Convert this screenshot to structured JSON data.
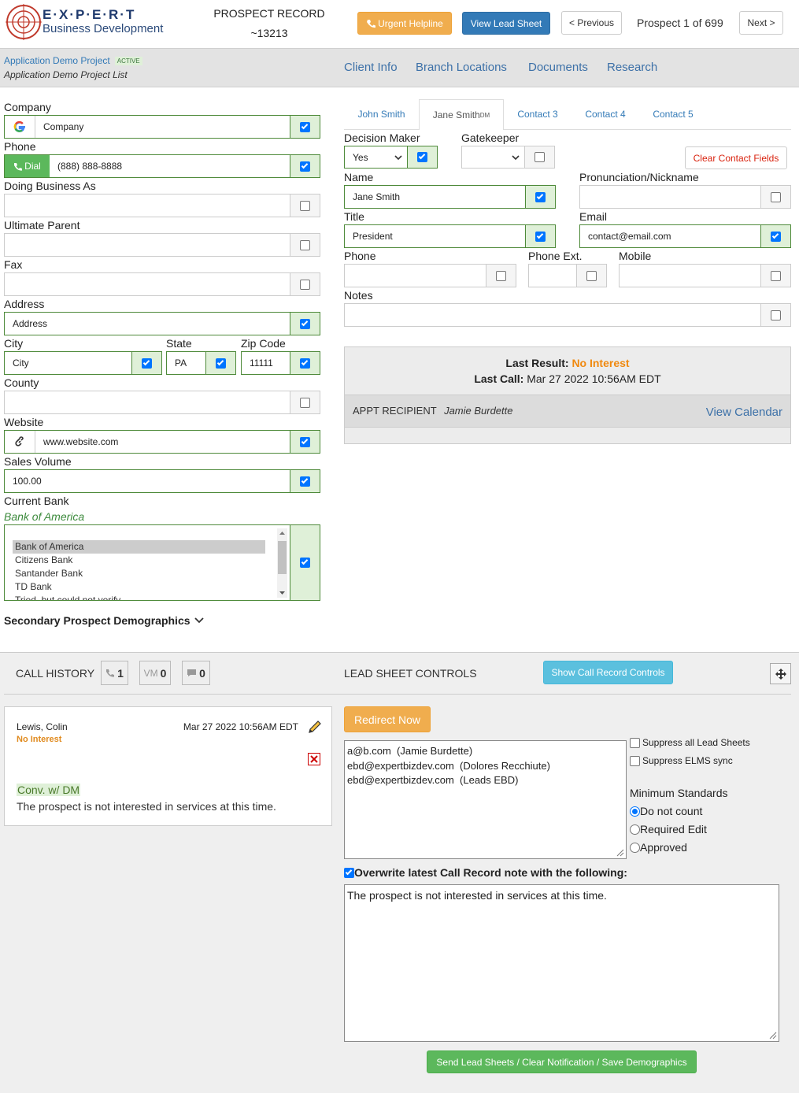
{
  "header": {
    "logo_title": "E·X·P·E·R·T",
    "logo_subtitle": "Business Development",
    "record_title": "PROSPECT RECORD",
    "record_id": "~13213",
    "urgent": "Urgent Helpline",
    "view_lead_sheet": "View Lead Sheet",
    "previous": "< Previous",
    "position": "Prospect 1 of 699",
    "next": "Next >"
  },
  "project": {
    "name": "Application Demo Project",
    "status": "ACTIVE",
    "list": "Application Demo Project List"
  },
  "nav": [
    "Client Info",
    "Branch Locations",
    "Documents",
    "Research"
  ],
  "company": {
    "fields": [
      {
        "label": "Company",
        "value": "Company",
        "checked": true
      },
      {
        "label": "Phone",
        "value": "(888) 888-8888",
        "checked": true,
        "button": "Dial"
      },
      {
        "label": "Doing Business As",
        "checked": false
      },
      {
        "label": "Ultimate Parent",
        "checked": false
      },
      {
        "label": "Fax",
        "checked": false
      },
      {
        "label": "Address",
        "value": "Address",
        "checked": true
      },
      {
        "label": "City",
        "value": "City",
        "checked": true
      },
      {
        "label": "State",
        "value": "PA",
        "checked": true
      },
      {
        "label": "Zip Code",
        "value": "11111",
        "checked": true
      },
      {
        "label": "County",
        "checked": false
      },
      {
        "label": "Website",
        "value": "www.website.com",
        "checked": true
      },
      {
        "label": "Sales Volume",
        "value": "100.00",
        "checked": true
      }
    ],
    "bank": {
      "label": "Current Bank",
      "selected": "Bank of America",
      "options": [
        "Bank of America",
        "Citizens Bank",
        "Santander Bank",
        "TD Bank",
        "Tried, but could not verify"
      ],
      "checked": true
    },
    "secondary": "Secondary Prospect Demographics"
  },
  "contact": {
    "tabs": [
      "John Smith",
      "Jane Smith",
      "Contact 3",
      "Contact 4",
      "Contact 5"
    ],
    "active": 1,
    "dm_badge": "DM",
    "decision_maker": {
      "label": "Decision Maker",
      "value": "Yes",
      "checked": true
    },
    "gatekeeper": {
      "label": "Gatekeeper",
      "checked": false
    },
    "clear": "Clear Contact Fields",
    "fields": [
      {
        "label": "Name",
        "value": "Jane Smith",
        "checked": true
      },
      {
        "label": "Pronunciation/Nickname",
        "checked": false
      },
      {
        "label": "Title",
        "value": "President",
        "checked": true
      },
      {
        "label": "Email",
        "value": "contact@email.com",
        "checked": true
      },
      {
        "label": "Phone",
        "checked": false
      },
      {
        "label": "Phone Ext.",
        "checked": false
      },
      {
        "label": "Mobile",
        "checked": false
      },
      {
        "label": "Notes",
        "checked": false
      }
    ]
  },
  "result": {
    "last_result_label": "Last Result:",
    "last_result": "No Interest",
    "last_call_label": "Last Call:",
    "last_call": "Mar 27 2022 10:56AM EDT",
    "appt_label": "APPT RECIPIENT",
    "appt_name": "Jamie Burdette",
    "view_calendar": "View Calendar"
  },
  "call_history": {
    "title": "CALL HISTORY",
    "calls": "1",
    "vm_label": "VM",
    "voicemails": "0",
    "messages": "0",
    "entries": [
      {
        "name": "Lewis, Colin",
        "result": "No Interest",
        "date": "Mar 27 2022 10:56AM EDT",
        "tag": "Conv. w/ DM",
        "note": "The prospect is not interested in services at this time."
      }
    ]
  },
  "lead_sheet": {
    "title": "LEAD SHEET CONTROLS",
    "show_controls": "Show Call Record Controls",
    "redirect": "Redirect Now",
    "recipients": [
      "a@b.com  (Jamie Burdette)",
      "ebd@expertbizdev.com  (Dolores Recchiute)",
      "ebd@expertbizdev.com  (Leads EBD)"
    ],
    "suppress": [
      {
        "label": "Suppress all Lead Sheets",
        "checked": false
      },
      {
        "label": "Suppress ELMS sync",
        "checked": false
      }
    ],
    "min_standards": {
      "label": "Minimum Standards",
      "options": [
        "Do not count",
        "Required Edit",
        "Approved"
      ],
      "selected": 0
    },
    "overwrite": {
      "label": "Overwrite latest Call Record note with the following:",
      "checked": true
    },
    "note": "The prospect is not interested in services at this time.",
    "send": "Send Lead Sheets / Clear Notification / Save Demographics"
  }
}
